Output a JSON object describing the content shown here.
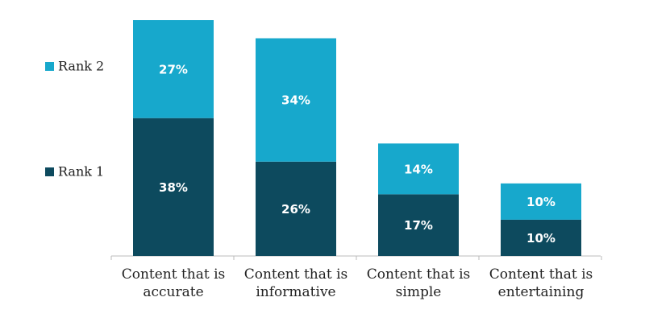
{
  "chart_data": {
    "type": "stacked-bar",
    "categories": [
      "Content that is accurate",
      "Content that is informative",
      "Content that is simple",
      "Content that is entertaining"
    ],
    "series": [
      {
        "name": "Rank 1",
        "color": "#0d4a5e",
        "values": [
          38,
          26,
          17,
          10
        ],
        "value_labels": [
          "38%",
          "26%",
          "17%",
          "10%"
        ]
      },
      {
        "name": "Rank 2",
        "color": "#17a8cc",
        "values": [
          27,
          34,
          14,
          10
        ],
        "value_labels": [
          "27%",
          "34%",
          "14%",
          "10%"
        ]
      }
    ]
  }
}
